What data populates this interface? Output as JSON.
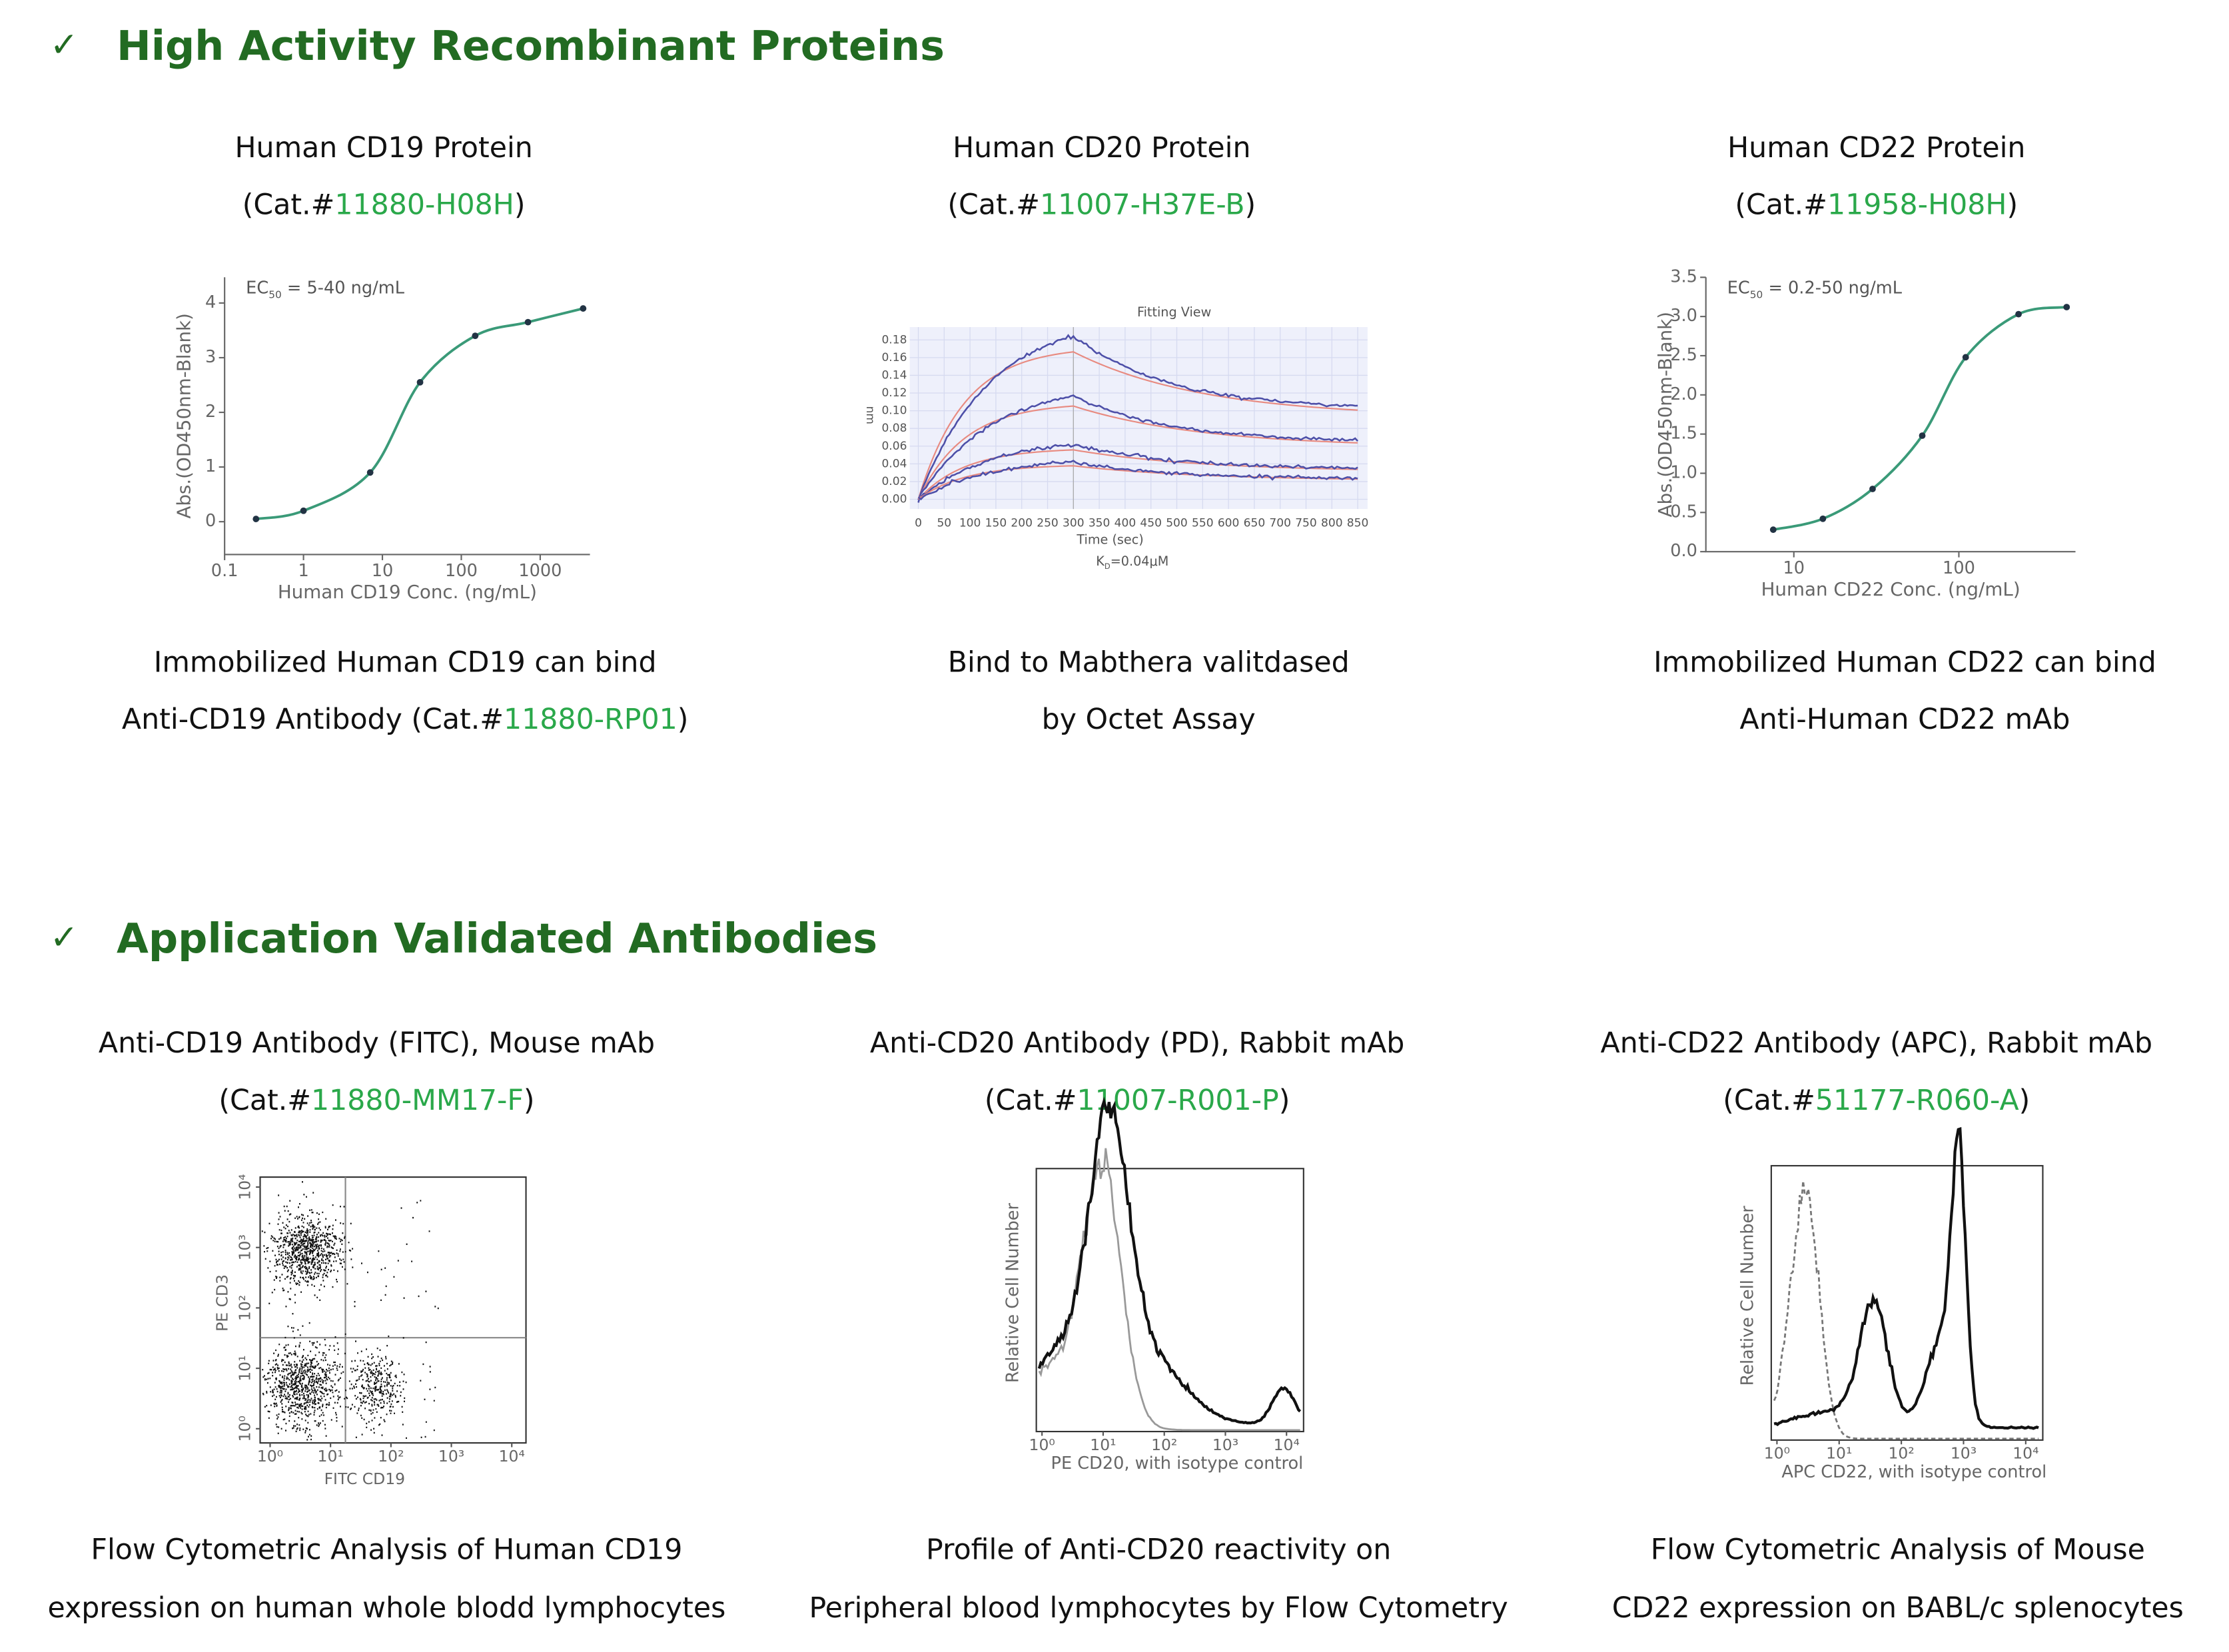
{
  "sections": [
    {
      "heading": "High Activity Recombinant Proteins",
      "items": [
        {
          "title": "Human CD19 Protein",
          "cat": [
            {
              "text": "(Cat.#"
            },
            {
              "text": "11880-H08H",
              "link": true
            },
            {
              "text": ")"
            }
          ],
          "chart": {
            "type": "line",
            "annotation": [
              "EC",
              "50",
              " = 5-40 ng/mL"
            ],
            "x_label": "Human CD19 Conc. (ng/mL)",
            "y_label": "Abs.(OD450nm-Blank)",
            "log_x": true,
            "xlim": [
              0.1,
              4270
            ],
            "ylim": [
              -0.6,
              4.47
            ],
            "xticks": [
              0.1,
              1,
              10,
              100,
              1000
            ],
            "yticks": [
              0,
              1,
              2,
              3,
              4
            ],
            "color": "#3a9a78",
            "x": [
              0.25,
              1,
              7,
              30,
              150,
              700,
              3500
            ],
            "y": [
              0.05,
              0.2,
              0.9,
              2.55,
              3.4,
              3.65,
              3.9
            ]
          },
          "caption": [
            [
              {
                "text": "Immobilized Human CD19 can bind"
              }
            ],
            [
              {
                "text": "Anti-CD19 Antibody (Cat.#"
              },
              {
                "text": "11880-RP01",
                "link": true
              },
              {
                "text": ")"
              }
            ]
          ]
        },
        {
          "title": "Human CD20 Protein",
          "cat": [
            {
              "text": "(Cat.#"
            },
            {
              "text": "11007-H37E-B",
              "link": true
            },
            {
              "text": ")"
            }
          ],
          "chart": {
            "type": "sensorgram",
            "title": "Fitting View",
            "y_label": "nm",
            "x_label": "Time (sec)",
            "annotation": [
              "K",
              "D",
              "=0.04μM"
            ],
            "xlim": [
              -16.5,
              869
            ],
            "ylim": [
              -0.011,
              0.1945
            ],
            "xticks": [
              0,
              50,
              100,
              150,
              200,
              250,
              300,
              350,
              400,
              450,
              500,
              550,
              600,
              650,
              700,
              750,
              800,
              850
            ],
            "yticks": [
              {
                "value": 0,
                "label": "0.00"
              },
              0.02,
              0.04,
              0.06,
              0.08,
              {
                "value": 0.1,
                "label": "0.10"
              },
              0.12,
              0.14,
              0.16,
              0.18
            ],
            "grid": true
          },
          "caption": [
            [
              {
                "text": "Bind to Mabthera valitdased"
              }
            ],
            [
              {
                "text": "by Octet Assay"
              }
            ]
          ]
        },
        {
          "title": "Human CD22 Protein",
          "cat": [
            {
              "text": "(Cat.#"
            },
            {
              "text": "11958-H08H",
              "link": true
            },
            {
              "text": ")"
            }
          ],
          "chart": {
            "type": "line",
            "annotation": [
              "EC",
              "50",
              " = 0.2-50 ng/mL"
            ],
            "x_label": "Human CD22 Conc. (ng/mL)",
            "y_label": "Abs.(OD450nm-Blank)",
            "log_x": true,
            "xlim": [
              2.93,
              509
            ],
            "ylim": [
              0,
              3.5
            ],
            "xticks": [
              10,
              100
            ],
            "yticks": [
              {
                "value": 0,
                "label": "0.0"
              },
              0.5,
              {
                "value": 1,
                "label": "1.0"
              },
              1.5,
              {
                "value": 2,
                "label": "2.0"
              },
              2.5,
              {
                "value": 3,
                "label": "3.0"
              },
              3.5
            ],
            "color": "#3a9a78",
            "x": [
              7.5,
              15,
              30,
              60,
              110,
              230,
              450
            ],
            "y": [
              0.28,
              0.42,
              0.8,
              1.48,
              2.48,
              3.03,
              3.12
            ]
          },
          "caption": [
            [
              {
                "text": "Immobilized Human CD22 can bind"
              }
            ],
            [
              {
                "text": "Anti-Human CD22 mAb"
              }
            ]
          ]
        }
      ]
    },
    {
      "heading": "Application Validated Antibodies",
      "items": [
        {
          "title": "Anti-CD19 Antibody (FITC), Mouse mAb",
          "cat": [
            {
              "text": "(Cat.#"
            },
            {
              "text": "11880-MM17-F",
              "link": true
            },
            {
              "text": ")"
            }
          ],
          "chart": {
            "type": "scatter",
            "x_label": "FITC CD19",
            "y_label": "PE CD3",
            "log_x": true,
            "log_y": true,
            "xlim": [
              0.684,
              17180
            ],
            "ylim": [
              0.582,
              14620
            ],
            "xticks": [
              {
                "value": 1,
                "label": "10⁰"
              },
              {
                "value": 10,
                "label": "10¹"
              },
              {
                "value": 100,
                "label": "10²"
              },
              {
                "value": 1000,
                "label": "10³"
              },
              {
                "value": 10000,
                "label": "10⁴"
              }
            ],
            "yticks": [
              {
                "value": 1,
                "label": "10⁰"
              },
              {
                "value": 10,
                "label": "10¹"
              },
              {
                "value": 100,
                "label": "10²"
              },
              {
                "value": 1000,
                "label": "10³"
              },
              {
                "value": 10000,
                "label": "10⁴"
              }
            ]
          },
          "caption": [
            [
              {
                "text": "Flow Cytometric Analysis of Human CD19"
              }
            ],
            [
              {
                "text": "expression on human whole blodd lymphocytes"
              }
            ]
          ]
        },
        {
          "title": "Anti-CD20 Antibody (PD), Rabbit mAb",
          "cat": [
            {
              "text": "(Cat.#"
            },
            {
              "text": "11007-R001-P",
              "link": true
            },
            {
              "text": ")"
            }
          ],
          "chart": {
            "type": "histogram",
            "x_label": "PE CD20, with isotype control",
            "y_label": "Relative Cell Number",
            "log_x": true,
            "xlim": [
              0.807,
              19000
            ],
            "xticks": [
              {
                "value": 1,
                "label": "10⁰"
              },
              {
                "value": 10,
                "label": "10¹"
              },
              {
                "value": 100,
                "label": "10²"
              },
              {
                "value": 1000,
                "label": "10³"
              },
              {
                "value": 10000,
                "label": "10⁴"
              }
            ]
          },
          "caption": [
            [
              {
                "text": "Profile of Anti-CD20 reactivity on"
              }
            ],
            [
              {
                "text": "Peripheral blood lymphocytes by Flow Cytometry"
              }
            ]
          ]
        },
        {
          "title": "Anti-CD22 Antibody (APC), Rabbit mAb",
          "cat": [
            {
              "text": "(Cat.#"
            },
            {
              "text": "51177-R060-A",
              "link": true
            },
            {
              "text": ")"
            }
          ],
          "chart": {
            "type": "histogram",
            "x_label": "APC CD22, with isotype control",
            "y_label": "Relative Cell Number",
            "log_x": true,
            "xlim": [
              0.81,
              18800
            ],
            "xticks": [
              {
                "value": 1,
                "label": "10⁰"
              },
              {
                "value": 10,
                "label": "10¹"
              },
              {
                "value": 100,
                "label": "10²"
              },
              {
                "value": 1000,
                "label": "10³"
              },
              {
                "value": 10000,
                "label": "10⁴"
              }
            ]
          },
          "caption": [
            [
              {
                "text": "Flow Cytometric Analysis of Mouse"
              }
            ],
            [
              {
                "text": "CD22 expression on BABL/c splenocytes"
              }
            ]
          ]
        }
      ]
    }
  ]
}
